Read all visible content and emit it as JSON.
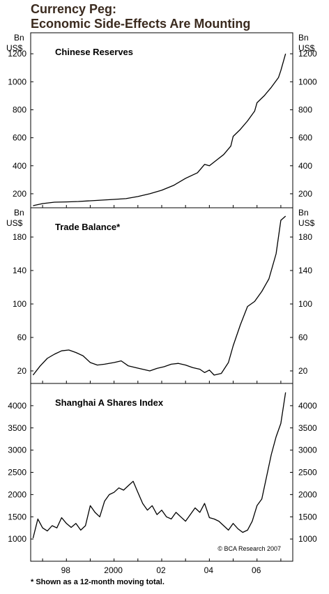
{
  "header": {
    "title_line1": "Currency Peg:",
    "title_line2": "Economic Side-Effects Are Mounting"
  },
  "footnote": "* Shown as a 12-month moving total.",
  "copyright": "© BCA Research 2007",
  "x_tick_labels": [
    "98",
    "2000",
    "02",
    "04",
    "06"
  ],
  "colors": {
    "title": "#3a2a1e",
    "line": "#000000"
  },
  "chart_data": [
    {
      "type": "line",
      "title": "Chinese Reserves",
      "unit_line1": "Bn",
      "unit_line2": "US$",
      "x_range": [
        1996.5,
        2007.5
      ],
      "ylim": [
        100,
        1350
      ],
      "y_ticks": [
        200,
        400,
        600,
        800,
        1000,
        1200
      ],
      "series": [
        {
          "x": [
            1996.6,
            1997.0,
            1997.5,
            1998.0,
            1998.5,
            1999.0,
            1999.5,
            2000.0,
            2000.5,
            2001.0,
            2001.5,
            2002.0,
            2002.5,
            2003.0,
            2003.5,
            2003.8,
            2004.0,
            2004.3,
            2004.6,
            2004.9,
            2005.0,
            2005.3,
            2005.6,
            2005.9,
            2006.0,
            2006.3,
            2006.6,
            2006.9,
            2007.0,
            2007.2
          ],
          "y": [
            115,
            130,
            140,
            142,
            145,
            150,
            155,
            160,
            165,
            180,
            200,
            225,
            260,
            310,
            350,
            410,
            400,
            440,
            480,
            540,
            610,
            660,
            720,
            790,
            850,
            900,
            960,
            1030,
            1080,
            1200
          ]
        }
      ]
    },
    {
      "type": "line",
      "title": "Trade Balance*",
      "unit_line1": "Bn",
      "unit_line2": "US$",
      "x_range": [
        1996.5,
        2007.5
      ],
      "ylim": [
        5,
        215
      ],
      "y_ticks": [
        20,
        60,
        100,
        140,
        180
      ],
      "series": [
        {
          "x": [
            1996.6,
            1996.9,
            1997.2,
            1997.5,
            1997.8,
            1998.1,
            1998.4,
            1998.7,
            1999.0,
            1999.3,
            1999.6,
            2000.0,
            2000.3,
            2000.6,
            2000.9,
            2001.2,
            2001.5,
            2001.8,
            2002.1,
            2002.4,
            2002.7,
            2003.0,
            2003.3,
            2003.6,
            2003.8,
            2004.0,
            2004.2,
            2004.5,
            2004.8,
            2005.0,
            2005.3,
            2005.6,
            2005.9,
            2006.2,
            2006.5,
            2006.8,
            2007.0,
            2007.2
          ],
          "y": [
            15,
            26,
            35,
            40,
            44,
            45,
            42,
            38,
            30,
            27,
            28,
            30,
            32,
            26,
            24,
            22,
            20,
            23,
            25,
            28,
            29,
            27,
            24,
            22,
            18,
            21,
            15,
            17,
            30,
            50,
            75,
            97,
            103,
            115,
            130,
            160,
            200,
            205
          ]
        }
      ]
    },
    {
      "type": "line",
      "title": "Shanghai A Shares Index",
      "unit_line1": "",
      "unit_line2": "",
      "x_range": [
        1996.5,
        2007.5
      ],
      "ylim": [
        500,
        4500
      ],
      "y_ticks": [
        1000,
        1500,
        2000,
        2500,
        3000,
        3500,
        4000
      ],
      "series": [
        {
          "x": [
            1996.6,
            1996.8,
            1997.0,
            1997.2,
            1997.4,
            1997.6,
            1997.8,
            1998.0,
            1998.2,
            1998.4,
            1998.6,
            1998.8,
            1999.0,
            1999.2,
            1999.4,
            1999.6,
            1999.8,
            2000.0,
            2000.2,
            2000.4,
            2000.6,
            2000.8,
            2001.0,
            2001.2,
            2001.4,
            2001.6,
            2001.8,
            2002.0,
            2002.2,
            2002.4,
            2002.6,
            2002.8,
            2003.0,
            2003.2,
            2003.4,
            2003.6,
            2003.8,
            2004.0,
            2004.2,
            2004.4,
            2004.6,
            2004.8,
            2005.0,
            2005.2,
            2005.4,
            2005.6,
            2005.8,
            2006.0,
            2006.2,
            2006.4,
            2006.6,
            2006.8,
            2007.0,
            2007.2
          ],
          "y": [
            1020,
            1450,
            1250,
            1180,
            1300,
            1250,
            1480,
            1350,
            1260,
            1350,
            1200,
            1300,
            1750,
            1600,
            1500,
            1850,
            2000,
            2050,
            2150,
            2100,
            2200,
            2300,
            2050,
            1800,
            1650,
            1750,
            1550,
            1650,
            1500,
            1450,
            1600,
            1500,
            1400,
            1550,
            1700,
            1600,
            1800,
            1480,
            1450,
            1400,
            1300,
            1200,
            1350,
            1230,
            1150,
            1200,
            1400,
            1750,
            1900,
            2400,
            2900,
            3300,
            3600,
            4300
          ]
        }
      ]
    }
  ]
}
